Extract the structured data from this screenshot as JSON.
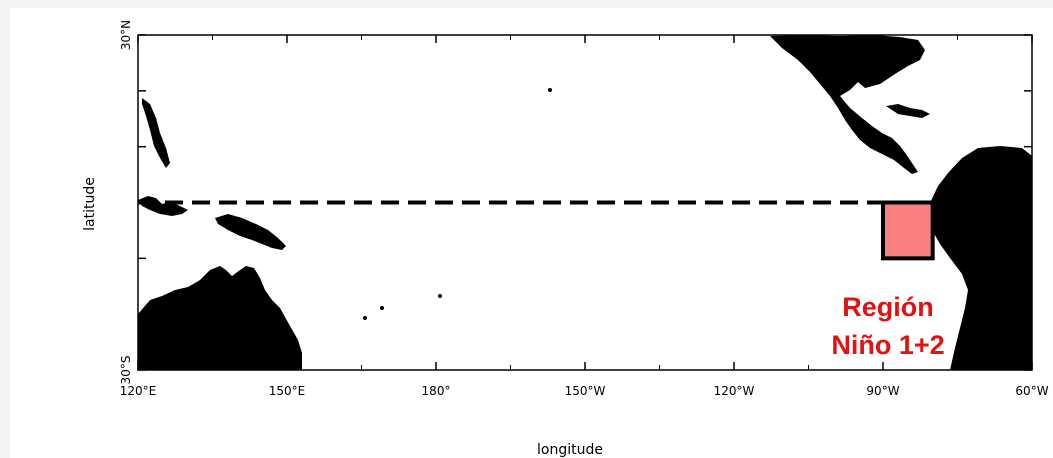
{
  "map": {
    "x_axis_title": "longitude",
    "y_axis_title": "latitude",
    "lon_ticks": [
      {
        "lon": 120,
        "label": "120°E"
      },
      {
        "lon": 150,
        "label": "150°E"
      },
      {
        "lon": 180,
        "label": "180°"
      },
      {
        "lon": 210,
        "label": "150°W"
      },
      {
        "lon": 240,
        "label": "120°W"
      },
      {
        "lon": 270,
        "label": "90°W"
      },
      {
        "lon": 300,
        "label": "60°W"
      }
    ],
    "lat_ticks": [
      {
        "lat": 30,
        "label": "30°N"
      },
      {
        "lat": -30,
        "label": "30°S"
      }
    ],
    "lon_range": [
      120,
      300
    ],
    "lat_range": [
      -30,
      30
    ],
    "equator_line": {
      "lat": 0,
      "style": "dashed"
    },
    "region": {
      "label_line1": "Región",
      "label_line2": "Niño 1+2",
      "lon": [
        270,
        280
      ],
      "lat": [
        -10,
        0
      ],
      "fill_color": "#fa8080",
      "label_color": "#e31212"
    },
    "land_color": "#000000"
  }
}
